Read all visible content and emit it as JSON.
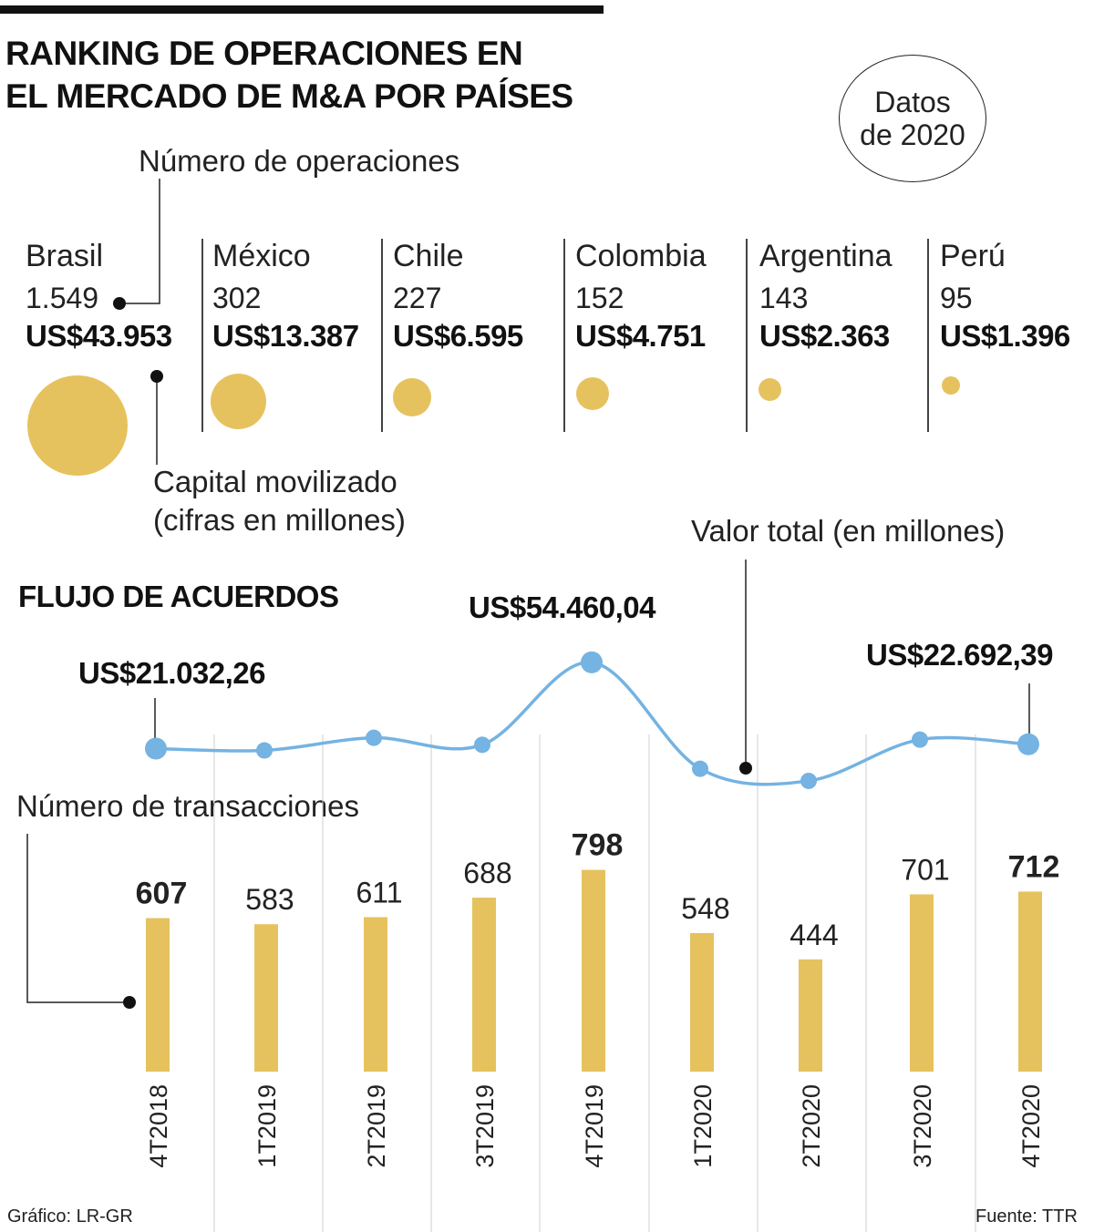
{
  "title": {
    "line1": "RANKING DE OPERACIONES EN",
    "line2": "EL MERCADO DE M&A POR PAÍSES"
  },
  "date_badge": {
    "line1": "Datos",
    "line2": "de 2020"
  },
  "legend": {
    "operations": "Número de operaciones",
    "capital_line1": "Capital movilizado",
    "capital_line2": "(cifras en millones)"
  },
  "countries": [
    {
      "name": "Brasil",
      "operations": "1.549",
      "capital": "US$43.953"
    },
    {
      "name": "México",
      "operations": "302",
      "capital": "US$13.387"
    },
    {
      "name": "Chile",
      "operations": "227",
      "capital": "US$6.595"
    },
    {
      "name": "Colombia",
      "operations": "152",
      "capital": "US$4.751"
    },
    {
      "name": "Argentina",
      "operations": "143",
      "capital": "US$2.363"
    },
    {
      "name": "Perú",
      "operations": "95",
      "capital": "US$1.396"
    }
  ],
  "flow": {
    "title": "FLUJO DE ACUERDOS",
    "value_label": "Valor total (en millones)",
    "transactions_label": "Número de transacciones",
    "callouts": {
      "first": "US$21.032,26",
      "peak": "US$54.460,04",
      "last": "US$22.692,39"
    }
  },
  "chart_data": [
    {
      "type": "bubble",
      "title": "RANKING DE OPERACIONES EN EL MERCADO DE M&A POR PAÍSES",
      "categories": [
        "Brasil",
        "México",
        "Chile",
        "Colombia",
        "Argentina",
        "Perú"
      ],
      "series": [
        {
          "name": "Número de operaciones",
          "values": [
            1549,
            302,
            227,
            152,
            143,
            95
          ]
        },
        {
          "name": "Capital movilizado",
          "values": [
            43953,
            13387,
            6595,
            4751,
            2363,
            1396
          ]
        }
      ]
    },
    {
      "type": "bar",
      "title": "FLUJO DE ACUERDOS",
      "categories": [
        "4T2018",
        "1T2019",
        "2T2019",
        "3T2019",
        "4T2019",
        "1T2020",
        "2T2020",
        "3T2020",
        "4T2020"
      ],
      "values": [
        607,
        583,
        611,
        688,
        798,
        548,
        444,
        701,
        712
      ],
      "labels": [
        "607",
        "583",
        "611",
        "688",
        "798",
        "548",
        "444",
        "701",
        "712"
      ],
      "bold": [
        true,
        false,
        false,
        false,
        true,
        false,
        false,
        false,
        true
      ],
      "color": "#e6c25e"
    },
    {
      "type": "line",
      "title": "FLUJO DE ACUERDOS",
      "categories": [
        "4T2018",
        "1T2019",
        "2T2019",
        "3T2019",
        "4T2019",
        "1T2020",
        "2T2020",
        "3T2020",
        "4T2020"
      ],
      "values": [
        21032.26,
        20300,
        25200,
        22500,
        54460.04,
        13200,
        8500,
        24500,
        22692.39
      ],
      "ylim": [
        0,
        60000
      ],
      "color": "#74b3e2"
    }
  ],
  "footer": {
    "left": "Gráfico: LR-GR",
    "right": "Fuente: TTR"
  }
}
